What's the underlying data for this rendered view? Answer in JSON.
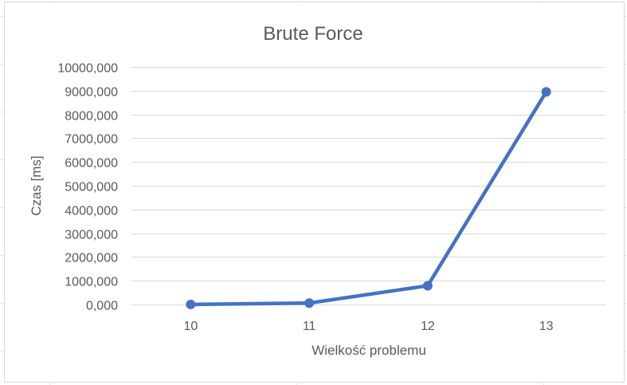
{
  "chart_data": {
    "type": "line",
    "title": "Brute Force",
    "xlabel": "Wielkość problemu",
    "ylabel": "Czas [ms]",
    "categories": [
      "10",
      "11",
      "12",
      "13"
    ],
    "series": [
      {
        "values": [
          2,
          60,
          790,
          8950
        ]
      }
    ],
    "ylim": [
      0,
      10000
    ],
    "yticks": [
      "0,000",
      "1000,000",
      "2000,000",
      "3000,000",
      "4000,000",
      "5000,000",
      "6000,000",
      "7000,000",
      "8000,000",
      "9000,000",
      "10000,000"
    ],
    "ytick_values": [
      0,
      1000,
      2000,
      3000,
      4000,
      5000,
      6000,
      7000,
      8000,
      9000,
      10000
    ],
    "grid": true,
    "legend": "none",
    "colors": {
      "series": "#4472c4",
      "grid": "#d9d9d9",
      "text": "#595959",
      "border": "#d9d9d9"
    }
  }
}
